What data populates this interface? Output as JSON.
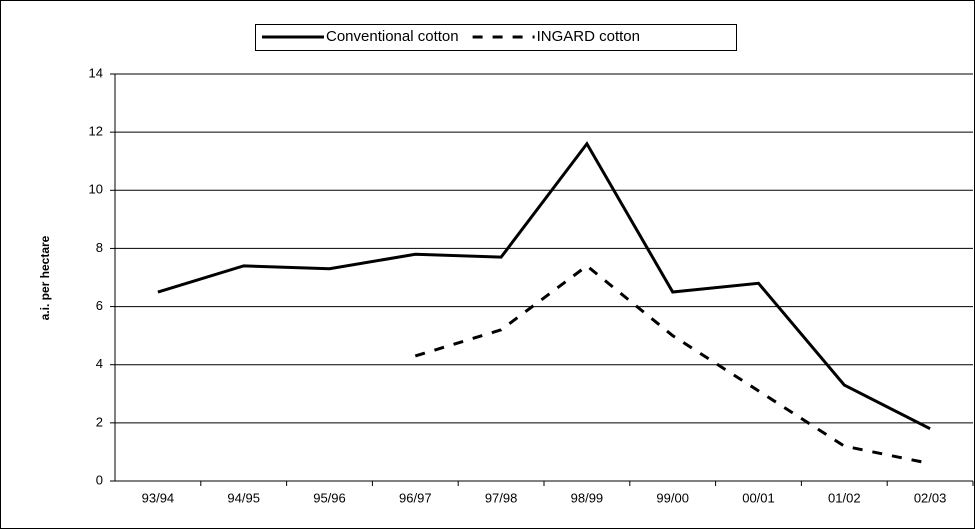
{
  "chart_data": {
    "type": "line",
    "y_label": "a.i. per hectare",
    "categories": [
      "93/94",
      "94/95",
      "95/96",
      "96/97",
      "97/98",
      "98/99",
      "99/00",
      "00/01",
      "01/02",
      "02/03"
    ],
    "series": [
      {
        "name": "Conventional cotton",
        "color": "#000000",
        "style": "solid",
        "values": [
          6.5,
          7.4,
          7.3,
          7.8,
          7.7,
          11.6,
          6.5,
          6.8,
          3.3,
          1.8
        ]
      },
      {
        "name": "INGARD cotton",
        "color": "#000000",
        "style": "dashed",
        "values": [
          null,
          null,
          null,
          4.3,
          5.2,
          7.4,
          5.0,
          3.1,
          1.2,
          0.6
        ]
      }
    ],
    "ylim": [
      0,
      14
    ],
    "yticks": [
      0,
      2,
      4,
      6,
      8,
      10,
      12,
      14
    ],
    "grid": true,
    "legend": "top"
  }
}
